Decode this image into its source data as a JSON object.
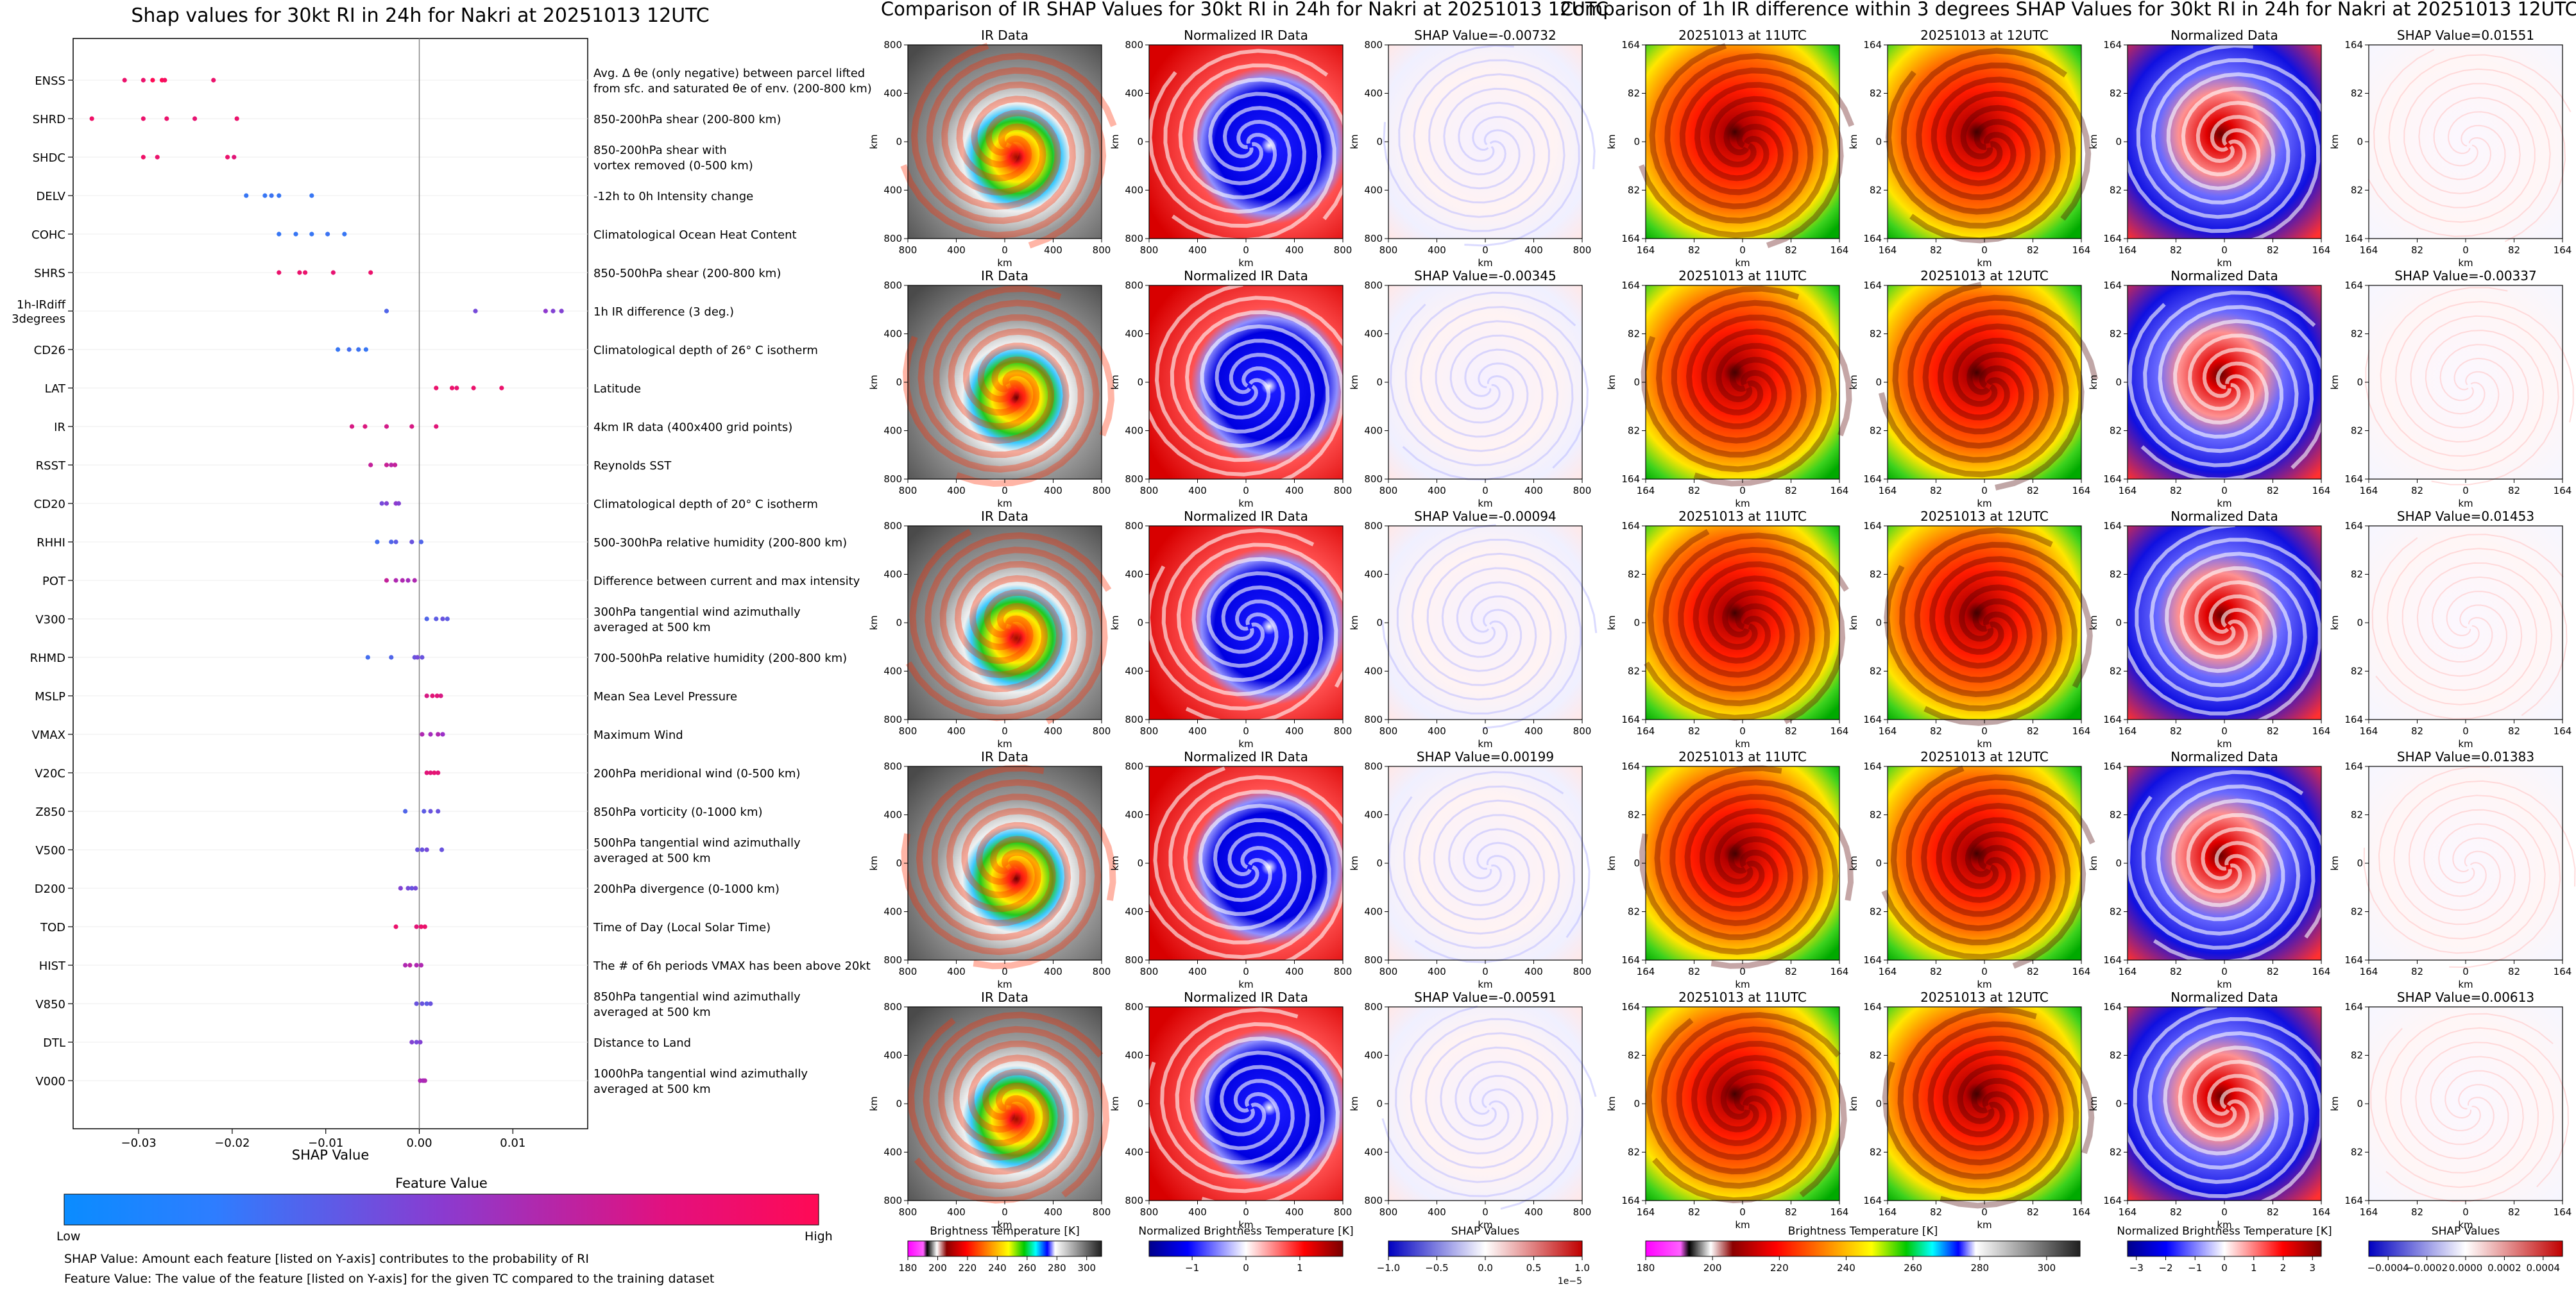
{
  "colors": {
    "low": "#1e88ff",
    "high": "#ff0a55",
    "ir_gray_dark": "#3c3c3c",
    "ir_gray_light": "#d7d7d7",
    "norm_blue": "#0505c8",
    "norm_red": "#dc0000"
  },
  "chart_data": [
    {
      "type": "scatter",
      "kind": "shap-beeswarm",
      "title": "Shap values for 30kt RI in 24h for Nakri at 20251013 12UTC",
      "xlabel": "SHAP Value",
      "xlim": [
        -0.037,
        0.018
      ],
      "xticks": [
        -0.03,
        -0.02,
        -0.01,
        0.0,
        0.01
      ],
      "xtick_labels": [
        "−0.03",
        "−0.02",
        "−0.01",
        "0.00",
        "0.01"
      ],
      "colorbar": {
        "title": "Feature Value",
        "low_label": "Low",
        "high_label": "High"
      },
      "features": [
        {
          "name": "ENSS",
          "desc": [
            "Avg. Δ θe (only negative) between parcel lifted",
            "from sfc. and saturated θe of env. (200-800 km)"
          ],
          "points": [
            [
              -0.0315,
              0.9
            ],
            [
              -0.0295,
              0.9
            ],
            [
              -0.0285,
              1.0
            ],
            [
              -0.0275,
              1.0
            ],
            [
              -0.0272,
              0.95
            ],
            [
              -0.022,
              0.9
            ]
          ]
        },
        {
          "name": "SHRD",
          "desc": [
            "850-200hPa shear (200-800 km)"
          ],
          "points": [
            [
              -0.035,
              0.92
            ],
            [
              -0.0295,
              0.9
            ],
            [
              -0.027,
              0.9
            ],
            [
              -0.024,
              0.88
            ],
            [
              -0.0195,
              0.9
            ]
          ]
        },
        {
          "name": "SHDC",
          "desc": [
            "850-200hPa shear with",
            "vortex removed (0-500 km)"
          ],
          "points": [
            [
              -0.0295,
              0.92
            ],
            [
              -0.028,
              0.9
            ],
            [
              -0.0205,
              0.9
            ],
            [
              -0.0198,
              0.85
            ]
          ]
        },
        {
          "name": "DELV",
          "desc": [
            "-12h to 0h Intensity change"
          ],
          "points": [
            [
              -0.0185,
              0.1
            ],
            [
              -0.0165,
              0.1
            ],
            [
              -0.0158,
              0.12
            ],
            [
              -0.015,
              0.1
            ],
            [
              -0.0115,
              0.1
            ]
          ]
        },
        {
          "name": "COHC",
          "desc": [
            "Climatological Ocean Heat Content"
          ],
          "points": [
            [
              -0.015,
              0.1
            ],
            [
              -0.0132,
              0.1
            ],
            [
              -0.0115,
              0.1
            ],
            [
              -0.0098,
              0.12
            ],
            [
              -0.008,
              0.1
            ]
          ]
        },
        {
          "name": "SHRS",
          "desc": [
            "850-500hPa shear (200-800 km)"
          ],
          "points": [
            [
              -0.015,
              0.9
            ],
            [
              -0.0128,
              0.9
            ],
            [
              -0.0122,
              0.9
            ],
            [
              -0.0092,
              0.88
            ],
            [
              -0.0052,
              0.9
            ]
          ]
        },
        {
          "name": "1h-IRdiff\n3degrees",
          "desc": [
            "1h IR difference (3 deg.)"
          ],
          "points": [
            [
              -0.0035,
              0.2
            ],
            [
              0.006,
              0.35
            ],
            [
              0.0135,
              0.45
            ],
            [
              0.0143,
              0.4
            ],
            [
              0.0152,
              0.4
            ]
          ]
        },
        {
          "name": "CD26",
          "desc": [
            "Climatological depth of 26° C isotherm"
          ],
          "points": [
            [
              -0.0087,
              0.1
            ],
            [
              -0.0075,
              0.15
            ],
            [
              -0.0065,
              0.12
            ],
            [
              -0.0057,
              0.1
            ]
          ]
        },
        {
          "name": "LAT",
          "desc": [
            "Latitude"
          ],
          "points": [
            [
              0.0018,
              0.9
            ],
            [
              0.0035,
              0.9
            ],
            [
              0.004,
              0.88
            ],
            [
              0.0058,
              0.9
            ],
            [
              0.0088,
              0.9
            ]
          ]
        },
        {
          "name": "IR",
          "desc": [
            "4km IR data (400x400 grid points)"
          ],
          "points": [
            [
              -0.0072,
              0.8
            ],
            [
              -0.0058,
              0.82
            ],
            [
              -0.0035,
              0.78
            ],
            [
              -0.0008,
              0.8
            ],
            [
              0.0018,
              0.85
            ]
          ]
        },
        {
          "name": "RSST",
          "desc": [
            "Reynolds SST"
          ],
          "points": [
            [
              -0.0052,
              0.7
            ],
            [
              -0.0035,
              0.72
            ],
            [
              -0.003,
              0.65
            ],
            [
              -0.0026,
              0.7
            ]
          ]
        },
        {
          "name": "CD20",
          "desc": [
            "Climatological depth of 20° C isotherm"
          ],
          "points": [
            [
              -0.004,
              0.35
            ],
            [
              -0.0035,
              0.4
            ],
            [
              -0.0025,
              0.45
            ],
            [
              -0.0022,
              0.4
            ]
          ]
        },
        {
          "name": "RHHI",
          "desc": [
            "500-300hPa relative humidity (200-800 km)"
          ],
          "points": [
            [
              -0.0045,
              0.15
            ],
            [
              -0.003,
              0.2
            ],
            [
              -0.0025,
              0.25
            ],
            [
              -0.0008,
              0.3
            ],
            [
              0.0002,
              0.2
            ]
          ]
        },
        {
          "name": "POT",
          "desc": [
            "Difference between current and max intensity"
          ],
          "points": [
            [
              -0.0035,
              0.7
            ],
            [
              -0.0025,
              0.6
            ],
            [
              -0.0018,
              0.6
            ],
            [
              -0.0012,
              0.55
            ],
            [
              -0.0005,
              0.6
            ]
          ]
        },
        {
          "name": "V300",
          "desc": [
            "300hPa tangential wind azimuthally",
            "averaged at 500 km"
          ],
          "points": [
            [
              0.0008,
              0.2
            ],
            [
              0.0018,
              0.25
            ],
            [
              0.0025,
              0.3
            ],
            [
              0.003,
              0.25
            ]
          ]
        },
        {
          "name": "RHMD",
          "desc": [
            "700-500hPa relative humidity (200-800 km)"
          ],
          "points": [
            [
              -0.0055,
              0.15
            ],
            [
              -0.003,
              0.2
            ],
            [
              -0.0005,
              0.3
            ],
            [
              -0.0002,
              0.35
            ],
            [
              0.0003,
              0.3
            ]
          ]
        },
        {
          "name": "MSLP",
          "desc": [
            "Mean Sea Level Pressure"
          ],
          "points": [
            [
              0.0008,
              0.8
            ],
            [
              0.0014,
              0.85
            ],
            [
              0.0019,
              0.85
            ],
            [
              0.0023,
              0.8
            ]
          ]
        },
        {
          "name": "VMAX",
          "desc": [
            "Maximum Wind"
          ],
          "points": [
            [
              0.0003,
              0.6
            ],
            [
              0.0012,
              0.55
            ],
            [
              0.002,
              0.6
            ],
            [
              0.0025,
              0.5
            ]
          ]
        },
        {
          "name": "V20C",
          "desc": [
            "200hPa meridional wind (0-500 km)"
          ],
          "points": [
            [
              0.0008,
              0.85
            ],
            [
              0.0012,
              0.85
            ],
            [
              0.0016,
              0.88
            ],
            [
              0.002,
              0.85
            ]
          ]
        },
        {
          "name": "Z850",
          "desc": [
            "850hPa vorticity (0-1000 km)"
          ],
          "points": [
            [
              -0.0015,
              0.2
            ],
            [
              0.0005,
              0.25
            ],
            [
              0.0012,
              0.3
            ],
            [
              0.002,
              0.3
            ]
          ]
        },
        {
          "name": "V500",
          "desc": [
            "500hPa tangential wind azimuthally",
            "averaged at 500 km"
          ],
          "points": [
            [
              -0.0002,
              0.3
            ],
            [
              0.0003,
              0.3
            ],
            [
              0.0008,
              0.35
            ],
            [
              0.0024,
              0.3
            ]
          ]
        },
        {
          "name": "D200",
          "desc": [
            "200hPa divergence (0-1000 km)"
          ],
          "points": [
            [
              -0.002,
              0.4
            ],
            [
              -0.0012,
              0.35
            ],
            [
              -0.0008,
              0.3
            ],
            [
              -0.0004,
              0.35
            ]
          ]
        },
        {
          "name": "TOD",
          "desc": [
            "Time of Day (Local Solar Time)"
          ],
          "points": [
            [
              -0.0025,
              0.9
            ],
            [
              -0.0003,
              0.85
            ],
            [
              0.0002,
              0.9
            ],
            [
              0.0006,
              0.9
            ]
          ]
        },
        {
          "name": "HIST",
          "desc": [
            "The # of 6h periods VMAX has been above 20kt"
          ],
          "points": [
            [
              -0.0015,
              0.6
            ],
            [
              -0.001,
              0.65
            ],
            [
              -0.0003,
              0.6
            ],
            [
              0.0002,
              0.6
            ]
          ]
        },
        {
          "name": "V850",
          "desc": [
            "850hPa tangential wind azimuthally",
            "averaged at 500 km"
          ],
          "points": [
            [
              -0.0003,
              0.3
            ],
            [
              0.0003,
              0.3
            ],
            [
              0.0008,
              0.25
            ],
            [
              0.0012,
              0.3
            ]
          ]
        },
        {
          "name": "DTL",
          "desc": [
            "Distance to Land"
          ],
          "points": [
            [
              -0.0008,
              0.4
            ],
            [
              -0.0003,
              0.35
            ],
            [
              0.0001,
              0.4
            ]
          ]
        },
        {
          "name": "V000",
          "desc": [
            "1000hPa tangential wind azimuthally",
            "averaged at 500 km"
          ],
          "points": [
            [
              0.0001,
              0.6
            ],
            [
              0.0004,
              0.55
            ],
            [
              0.0006,
              0.6
            ]
          ]
        }
      ]
    },
    {
      "type": "heatmap",
      "title": "Comparison of IR SHAP Values for 30kt RI in 24h for Nakri at 20251013 12UTC",
      "columns": [
        "IR Data",
        "Normalized IR Data",
        "SHAP"
      ],
      "shap_prefix": "SHAP Value=",
      "rows_shap_values": [
        "-0.00732",
        "-0.00345",
        "-0.00094",
        "0.00199",
        "-0.00591"
      ],
      "xlabel": "km",
      "ylabel": "km",
      "x_ticks": [
        "800",
        "400",
        "0",
        "400",
        "800"
      ],
      "y_ticks": [
        "800",
        "400",
        "0",
        "400",
        "800"
      ],
      "colorbars": [
        {
          "label": "Brightness Temperature [K]",
          "ticks": [
            "180",
            "200",
            "220",
            "240",
            "260",
            "280",
            "300"
          ],
          "range": [
            180,
            310
          ]
        },
        {
          "label": "Normalized Brightness Temperature [K]",
          "ticks": [
            "−1",
            "0",
            "1"
          ],
          "range": [
            -1.8,
            1.8
          ]
        },
        {
          "label": "SHAP Values",
          "ticks": [
            "−1.0",
            "−0.5",
            "0.0",
            "0.5",
            "1.0"
          ],
          "range": [
            -1.0,
            1.0
          ],
          "multiplier": "1e−5"
        }
      ]
    },
    {
      "type": "heatmap",
      "title": "Comparison of 1h IR difference within 3 degrees SHAP Values for 30kt RI in 24h for Nakri at 20251013 12UTC",
      "columns": [
        "20251013 at 11UTC",
        "20251013 at 12UTC",
        "Normalized Data",
        "SHAP"
      ],
      "shap_prefix": "SHAP Value=",
      "rows_shap_values": [
        "0.01551",
        "-0.00337",
        "0.01453",
        "0.01383",
        "0.00613"
      ],
      "xlabel": "km",
      "ylabel": "km",
      "x_ticks": [
        "164",
        "82",
        "0",
        "82",
        "164"
      ],
      "y_ticks": [
        "164",
        "82",
        "0",
        "82",
        "164"
      ],
      "colorbars": [
        {
          "label": "Brightness Temperature [K]",
          "ticks": [
            "180",
            "200",
            "220",
            "240",
            "260",
            "280",
            "300"
          ],
          "range": [
            180,
            310
          ]
        },
        {
          "label": "Normalized Brightness Temperature [K]",
          "ticks": [
            "−3",
            "−2",
            "−1",
            "0",
            "1",
            "2",
            "3"
          ],
          "range": [
            -3.3,
            3.3
          ]
        },
        {
          "label": "SHAP Values",
          "ticks": [
            "−0.0004",
            "−0.0002",
            "0.0000",
            "0.0002",
            "0.0004"
          ],
          "range": [
            -0.0005,
            0.0005
          ]
        }
      ]
    }
  ],
  "notes": [
    "SHAP Value: Amount each feature [listed on Y-axis] contributes to the probability of RI",
    "Feature Value: The value of the feature [listed on Y-axis] for the given TC compared to the training dataset"
  ]
}
